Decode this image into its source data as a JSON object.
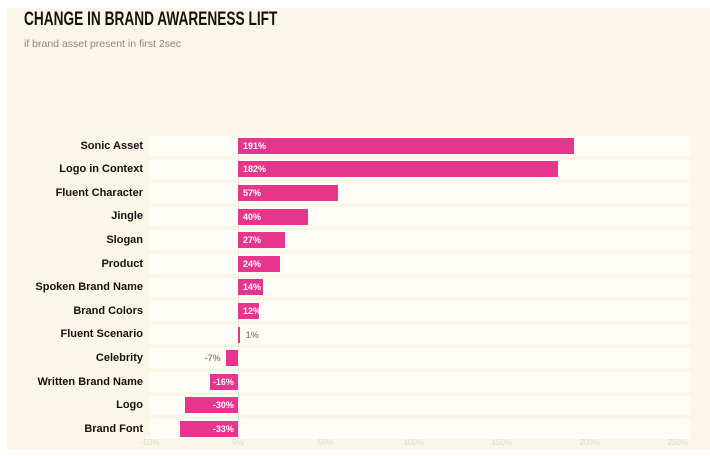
{
  "header": {
    "title": "CHANGE IN BRAND AWARENESS LIFT",
    "subtitle": "if brand asset present in first 2sec"
  },
  "colors": {
    "page_background": "#ffffff",
    "panel_background": "#fbf6e8",
    "row_band_background": "#fffdf6",
    "bar": "#e6358c",
    "category_label": "#15110d",
    "value_label_inside": "#ffffff",
    "value_label_outside": "#8f8b85",
    "tick_label": "#ddd8c5"
  },
  "chart_data": {
    "type": "bar",
    "orientation": "horizontal",
    "title": "CHANGE IN BRAND AWARENESS LIFT",
    "subtitle": "if brand asset present in first 2sec",
    "xlabel": "",
    "ylabel": "",
    "categories": [
      "Sonic Asset",
      "Logo in Context",
      "Fluent Character",
      "Jingle",
      "Slogan",
      "Product",
      "Spoken Brand Name",
      "Brand Colors",
      "Fluent Scenario",
      "Celebrity",
      "Written Brand Name",
      "Logo",
      "Brand Font"
    ],
    "values": [
      191,
      182,
      57,
      40,
      27,
      24,
      14,
      12,
      1,
      -7,
      -16,
      -30,
      -33
    ],
    "value_labels": [
      "191%",
      "182%",
      "57%",
      "40%",
      "27%",
      "24%",
      "14%",
      "12%",
      "1%",
      "-7%",
      "-16%",
      "-30%",
      "-33%"
    ],
    "xlim": [
      -50,
      257
    ],
    "x_tick_values": [
      -50,
      0,
      50,
      100,
      150,
      200,
      250
    ],
    "x_tick_labels": [
      "-50%",
      "0%",
      "50%",
      "100%",
      "150%",
      "200%",
      "250%"
    ],
    "grid": false,
    "legend": false
  }
}
